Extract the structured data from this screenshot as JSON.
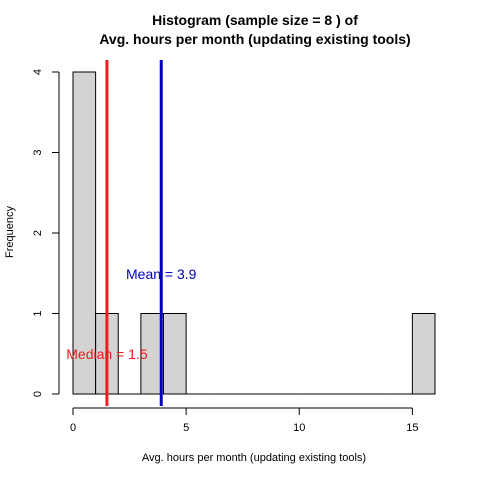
{
  "chart_data": {
    "type": "bar",
    "title_line1": "Histogram (sample size =  8 ) of",
    "title_line2": "Avg. hours per month (updating existing tools)",
    "xlabel": "Avg. hours per month (updating existing tools)",
    "ylabel": "Frequency",
    "xlim": [
      0,
      16
    ],
    "ylim": [
      0,
      4
    ],
    "x_ticks": [
      0,
      5,
      10,
      15
    ],
    "y_ticks": [
      0,
      1,
      2,
      3,
      4
    ],
    "bin_width": 1,
    "bins": [
      {
        "start": 0,
        "end": 1,
        "count": 4
      },
      {
        "start": 1,
        "end": 2,
        "count": 1
      },
      {
        "start": 2,
        "end": 3,
        "count": 0
      },
      {
        "start": 3,
        "end": 4,
        "count": 1
      },
      {
        "start": 4,
        "end": 5,
        "count": 1
      },
      {
        "start": 5,
        "end": 6,
        "count": 0
      },
      {
        "start": 6,
        "end": 7,
        "count": 0
      },
      {
        "start": 7,
        "end": 8,
        "count": 0
      },
      {
        "start": 8,
        "end": 9,
        "count": 0
      },
      {
        "start": 9,
        "end": 10,
        "count": 0
      },
      {
        "start": 10,
        "end": 11,
        "count": 0
      },
      {
        "start": 11,
        "end": 12,
        "count": 0
      },
      {
        "start": 12,
        "end": 13,
        "count": 0
      },
      {
        "start": 13,
        "end": 14,
        "count": 0
      },
      {
        "start": 14,
        "end": 15,
        "count": 0
      },
      {
        "start": 15,
        "end": 16,
        "count": 1
      }
    ],
    "bar_color": "#d3d3d3",
    "median": {
      "value": 1.5,
      "label": "Median = 1.5",
      "color": "#ee1c1c"
    },
    "mean": {
      "value": 3.9,
      "label": "Mean = 3.9",
      "color": "#0000c0"
    }
  }
}
